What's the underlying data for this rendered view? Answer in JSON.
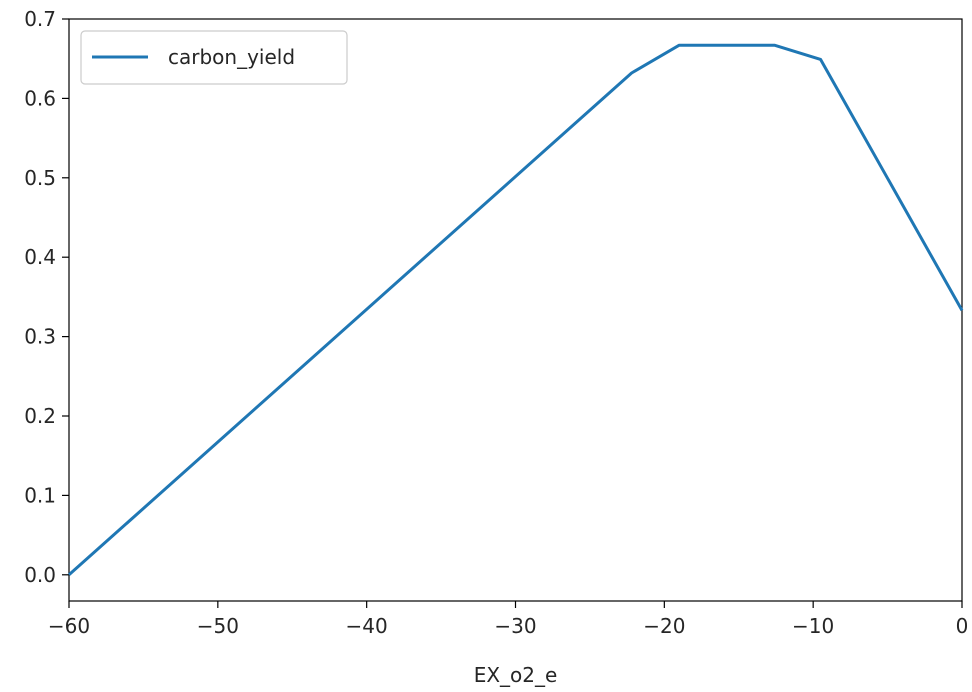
{
  "chart_data": {
    "type": "line",
    "title": "",
    "xlabel": "EX_o2_e",
    "ylabel": "",
    "xlim": [
      -60,
      0
    ],
    "ylim": [
      -0.033,
      0.7
    ],
    "grid": false,
    "legend_placement": "top-left",
    "x_ticks": [
      -60,
      -50,
      -40,
      -30,
      -20,
      -10,
      0
    ],
    "x_tick_labels": [
      "−60",
      "−50",
      "−40",
      "−30",
      "−20",
      "−10",
      "0"
    ],
    "y_ticks": [
      0.0,
      0.1,
      0.2,
      0.3,
      0.4,
      0.5,
      0.6,
      0.7
    ],
    "y_tick_labels": [
      "0.0",
      "0.1",
      "0.2",
      "0.3",
      "0.4",
      "0.5",
      "0.6",
      "0.7"
    ],
    "series": [
      {
        "name": "carbon_yield",
        "color": "#1f77b4",
        "x": [
          -60,
          -22.2,
          -19.0,
          -12.6,
          -9.5,
          0
        ],
        "y": [
          0.0,
          0.632,
          0.667,
          0.667,
          0.649,
          0.333
        ]
      }
    ]
  }
}
